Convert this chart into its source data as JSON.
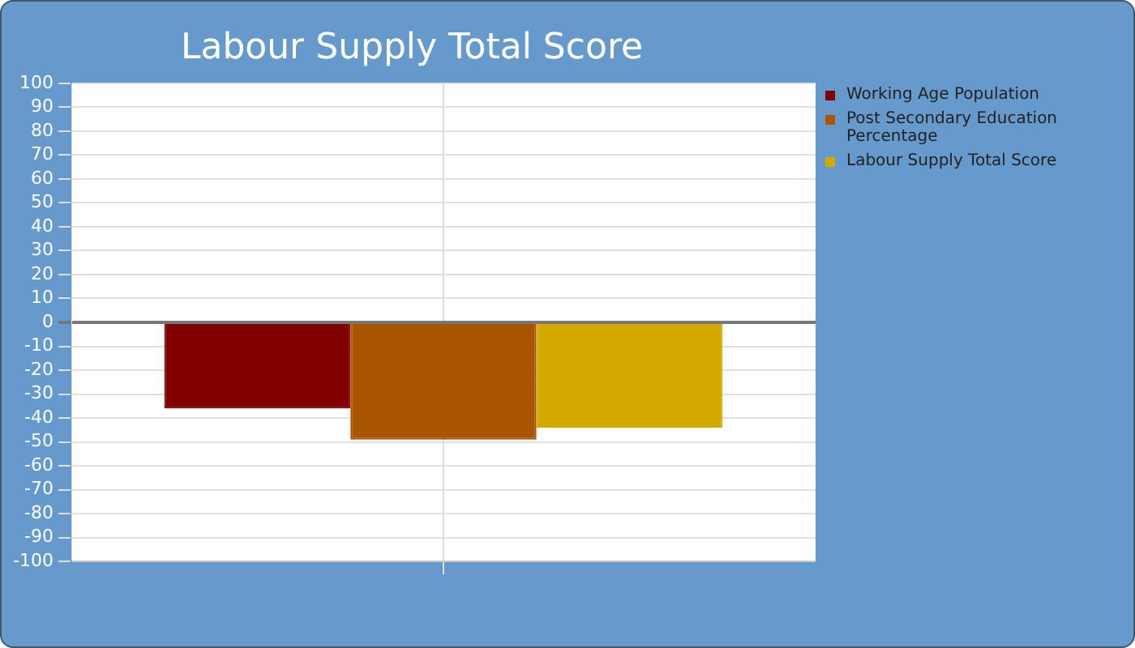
{
  "chart_data": {
    "type": "bar",
    "title": "Labour Supply Total Score",
    "categories": [
      null
    ],
    "series": [
      {
        "name": "Working Age Population",
        "color": "#800000",
        "values": [
          -36
        ]
      },
      {
        "name": "Post Secondary Education Percentage",
        "color": "#aa5500",
        "values": [
          -49
        ]
      },
      {
        "name": "Labour Supply Total Score",
        "color": "#d4aa00",
        "values": [
          -44
        ]
      }
    ],
    "ylim": [
      -100,
      100
    ],
    "yticks": [
      -100,
      -90,
      -80,
      -70,
      -60,
      -50,
      -40,
      -30,
      -20,
      -10,
      0,
      10,
      20,
      30,
      40,
      50,
      60,
      70,
      80,
      90,
      100
    ],
    "grid": true,
    "legend": "right"
  }
}
